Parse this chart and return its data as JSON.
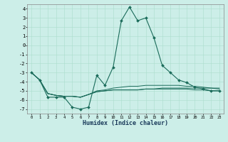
{
  "xlabel": "Humidex (Indice chaleur)",
  "bg_color": "#cceee8",
  "line_color": "#1a6b5a",
  "grid_color": "#aaddcc",
  "xlim": [
    -0.5,
    23.5
  ],
  "ylim": [
    -7.5,
    4.5
  ],
  "yticks": [
    -7,
    -6,
    -5,
    -4,
    -3,
    -2,
    -1,
    0,
    1,
    2,
    3,
    4
  ],
  "xticks": [
    0,
    1,
    2,
    3,
    4,
    5,
    6,
    7,
    8,
    9,
    10,
    11,
    12,
    13,
    14,
    15,
    16,
    17,
    18,
    19,
    20,
    21,
    22,
    23
  ],
  "x": [
    0,
    1,
    2,
    3,
    4,
    5,
    6,
    7,
    8,
    9,
    10,
    11,
    12,
    13,
    14,
    15,
    16,
    17,
    18,
    19,
    20,
    21,
    22,
    23
  ],
  "series1": [
    -3.0,
    -3.8,
    -5.7,
    -5.7,
    -5.7,
    -6.8,
    -7.0,
    -6.8,
    -3.3,
    -4.4,
    -2.4,
    2.7,
    4.2,
    2.7,
    3.0,
    0.8,
    -2.2,
    -3.0,
    -3.8,
    -4.1,
    -4.6,
    -4.8,
    -5.0,
    -5.0
  ],
  "series2": [
    -3.0,
    -3.8,
    -5.3,
    -5.5,
    -5.6,
    -5.6,
    -5.7,
    -5.4,
    -5.0,
    -4.9,
    -4.7,
    -4.6,
    -4.5,
    -4.5,
    -4.4,
    -4.4,
    -4.4,
    -4.4,
    -4.4,
    -4.5,
    -4.5,
    -4.6,
    -4.7,
    -4.8
  ],
  "series3": [
    -3.0,
    -3.8,
    -5.3,
    -5.5,
    -5.6,
    -5.6,
    -5.7,
    -5.4,
    -5.1,
    -5.0,
    -4.9,
    -4.9,
    -4.9,
    -4.9,
    -4.8,
    -4.8,
    -4.8,
    -4.8,
    -4.8,
    -4.8,
    -4.9,
    -4.9,
    -5.0,
    -5.0
  ],
  "series4": [
    -3.0,
    -3.8,
    -5.3,
    -5.5,
    -5.6,
    -5.6,
    -5.7,
    -5.4,
    -5.1,
    -5.0,
    -4.9,
    -4.9,
    -4.9,
    -4.9,
    -4.8,
    -4.8,
    -4.7,
    -4.7,
    -4.7,
    -4.7,
    -4.7,
    -4.7,
    -4.7,
    -4.7
  ]
}
